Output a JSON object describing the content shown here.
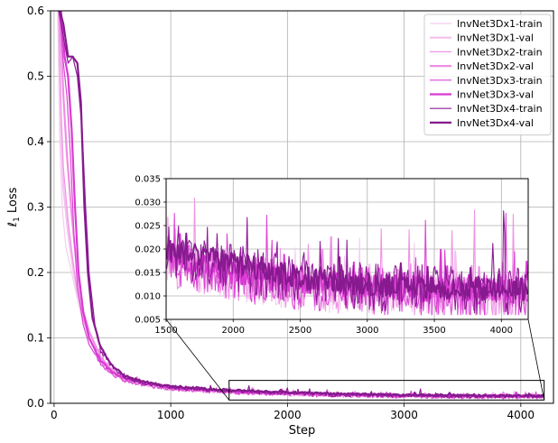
{
  "chart_data": {
    "type": "line",
    "title": "",
    "xlabel": "Step",
    "ylabel_main": "ℓ",
    "ylabel_sub": "1",
    "ylabel_rest": " Loss",
    "xlim": [
      -30,
      4280
    ],
    "ylim": [
      0,
      0.6
    ],
    "xticks": [
      "0",
      "1000",
      "2000",
      "3000",
      "4000"
    ],
    "yticks": [
      "0.0",
      "0.1",
      "0.2",
      "0.3",
      "0.4",
      "0.5",
      "0.6"
    ],
    "xtick_values": [
      0,
      1000,
      2000,
      3000,
      4000
    ],
    "ytick_values": [
      0.0,
      0.1,
      0.2,
      0.3,
      0.4,
      0.5,
      0.6
    ],
    "grid": true,
    "legend_position": "top-right",
    "series": [
      {
        "name": "InvNet3Dx1-train",
        "color": "#f5cdf0",
        "width": 1.2,
        "points": [
          [
            30,
            0.6
          ],
          [
            50,
            0.4
          ],
          [
            70,
            0.3
          ],
          [
            100,
            0.24
          ],
          [
            150,
            0.2
          ],
          [
            200,
            0.16
          ],
          [
            250,
            0.12
          ],
          [
            300,
            0.09
          ],
          [
            400,
            0.06
          ],
          [
            500,
            0.045
          ],
          [
            600,
            0.035
          ],
          [
            800,
            0.028
          ],
          [
            1000,
            0.022
          ],
          [
            1500,
            0.017
          ],
          [
            2000,
            0.014
          ],
          [
            2500,
            0.012
          ],
          [
            3000,
            0.011
          ],
          [
            3500,
            0.01
          ],
          [
            4000,
            0.01
          ],
          [
            4200,
            0.01
          ]
        ]
      },
      {
        "name": "InvNet3Dx1-val",
        "color": "#f5c0ef",
        "width": 2.2,
        "points": [
          [
            40,
            0.6
          ],
          [
            60,
            0.42
          ],
          [
            80,
            0.33
          ],
          [
            120,
            0.26
          ],
          [
            160,
            0.21
          ],
          [
            200,
            0.17
          ],
          [
            250,
            0.13
          ],
          [
            300,
            0.1
          ],
          [
            400,
            0.065
          ],
          [
            500,
            0.048
          ],
          [
            600,
            0.038
          ],
          [
            800,
            0.03
          ],
          [
            1000,
            0.024
          ],
          [
            1500,
            0.018
          ],
          [
            2000,
            0.015
          ],
          [
            2500,
            0.013
          ],
          [
            3000,
            0.012
          ],
          [
            3500,
            0.0115
          ],
          [
            4000,
            0.011
          ],
          [
            4200,
            0.011
          ]
        ]
      },
      {
        "name": "InvNet3Dx2-train",
        "color": "#ee95e4",
        "width": 1.2,
        "points": [
          [
            40,
            0.6
          ],
          [
            60,
            0.45
          ],
          [
            80,
            0.36
          ],
          [
            120,
            0.28
          ],
          [
            160,
            0.22
          ],
          [
            200,
            0.17
          ],
          [
            250,
            0.13
          ],
          [
            300,
            0.1
          ],
          [
            400,
            0.065
          ],
          [
            500,
            0.046
          ],
          [
            600,
            0.036
          ],
          [
            800,
            0.028
          ],
          [
            1000,
            0.022
          ],
          [
            1500,
            0.017
          ],
          [
            2000,
            0.014
          ],
          [
            2500,
            0.012
          ],
          [
            3000,
            0.011
          ],
          [
            3500,
            0.01
          ],
          [
            4000,
            0.01
          ],
          [
            4200,
            0.01
          ]
        ]
      },
      {
        "name": "InvNet3Dx2-val",
        "color": "#ee8ee4",
        "width": 2.2,
        "points": [
          [
            50,
            0.6
          ],
          [
            80,
            0.47
          ],
          [
            110,
            0.38
          ],
          [
            150,
            0.29
          ],
          [
            200,
            0.2
          ],
          [
            250,
            0.14
          ],
          [
            300,
            0.11
          ],
          [
            400,
            0.07
          ],
          [
            500,
            0.05
          ],
          [
            600,
            0.039
          ],
          [
            800,
            0.031
          ],
          [
            1000,
            0.025
          ],
          [
            1500,
            0.019
          ],
          [
            2000,
            0.016
          ],
          [
            2500,
            0.013
          ],
          [
            3000,
            0.012
          ],
          [
            3500,
            0.0115
          ],
          [
            4000,
            0.011
          ],
          [
            4200,
            0.011
          ]
        ]
      },
      {
        "name": "InvNet3Dx3-train",
        "color": "#dc46d6",
        "width": 1.2,
        "points": [
          [
            50,
            0.6
          ],
          [
            80,
            0.52
          ],
          [
            110,
            0.47
          ],
          [
            140,
            0.38
          ],
          [
            170,
            0.26
          ],
          [
            200,
            0.18
          ],
          [
            250,
            0.12
          ],
          [
            300,
            0.09
          ],
          [
            400,
            0.06
          ],
          [
            500,
            0.045
          ],
          [
            600,
            0.035
          ],
          [
            800,
            0.028
          ],
          [
            1000,
            0.022
          ],
          [
            1500,
            0.017
          ],
          [
            2000,
            0.014
          ],
          [
            2500,
            0.012
          ],
          [
            3000,
            0.011
          ],
          [
            3500,
            0.01
          ],
          [
            4000,
            0.01
          ],
          [
            4200,
            0.01
          ]
        ]
      },
      {
        "name": "InvNet3Dx3-val",
        "color": "#d83ad2",
        "width": 2.2,
        "points": [
          [
            60,
            0.6
          ],
          [
            90,
            0.53
          ],
          [
            120,
            0.5
          ],
          [
            150,
            0.42
          ],
          [
            180,
            0.3
          ],
          [
            210,
            0.2
          ],
          [
            250,
            0.14
          ],
          [
            300,
            0.1
          ],
          [
            400,
            0.065
          ],
          [
            500,
            0.048
          ],
          [
            600,
            0.038
          ],
          [
            800,
            0.03
          ],
          [
            1000,
            0.024
          ],
          [
            1500,
            0.018
          ],
          [
            2000,
            0.015
          ],
          [
            2500,
            0.013
          ],
          [
            3000,
            0.012
          ],
          [
            3500,
            0.0112
          ],
          [
            4000,
            0.011
          ],
          [
            4200,
            0.011
          ]
        ]
      },
      {
        "name": "InvNet3Dx4-train",
        "color": "#8e1a96",
        "width": 1.2,
        "points": [
          [
            40,
            0.6
          ],
          [
            80,
            0.56
          ],
          [
            120,
            0.52
          ],
          [
            160,
            0.53
          ],
          [
            200,
            0.5
          ],
          [
            240,
            0.42
          ],
          [
            270,
            0.3
          ],
          [
            300,
            0.2
          ],
          [
            350,
            0.12
          ],
          [
            400,
            0.08
          ],
          [
            500,
            0.055
          ],
          [
            600,
            0.04
          ],
          [
            800,
            0.03
          ],
          [
            1000,
            0.025
          ],
          [
            1500,
            0.019
          ],
          [
            2000,
            0.016
          ],
          [
            2500,
            0.013
          ],
          [
            3000,
            0.012
          ],
          [
            3500,
            0.0115
          ],
          [
            4000,
            0.011
          ],
          [
            4200,
            0.011
          ]
        ]
      },
      {
        "name": "InvNet3Dx4-val",
        "color": "#861a8e",
        "width": 2.2,
        "points": [
          [
            50,
            0.6
          ],
          [
            80,
            0.58
          ],
          [
            120,
            0.53
          ],
          [
            160,
            0.53
          ],
          [
            200,
            0.52
          ],
          [
            230,
            0.46
          ],
          [
            260,
            0.3
          ],
          [
            290,
            0.2
          ],
          [
            330,
            0.13
          ],
          [
            400,
            0.085
          ],
          [
            500,
            0.058
          ],
          [
            600,
            0.042
          ],
          [
            800,
            0.032
          ],
          [
            1000,
            0.026
          ],
          [
            1500,
            0.02
          ],
          [
            2000,
            0.017
          ],
          [
            2500,
            0.014
          ],
          [
            3000,
            0.0125
          ],
          [
            3500,
            0.012
          ],
          [
            4000,
            0.0115
          ],
          [
            4200,
            0.0115
          ]
        ]
      }
    ],
    "inset": {
      "xlim": [
        1500,
        4200
      ],
      "ylim": [
        0.005,
        0.035
      ],
      "xticks": [
        "1500",
        "2000",
        "2500",
        "3000",
        "3500",
        "4000"
      ],
      "yticks": [
        "0.005",
        "0.010",
        "0.015",
        "0.020",
        "0.025",
        "0.030",
        "0.035"
      ],
      "xtick_values": [
        1500,
        2000,
        2500,
        3000,
        3500,
        4000
      ],
      "ytick_values": [
        0.005,
        0.01,
        0.015,
        0.02,
        0.025,
        0.03,
        0.035
      ],
      "grid": true
    }
  }
}
